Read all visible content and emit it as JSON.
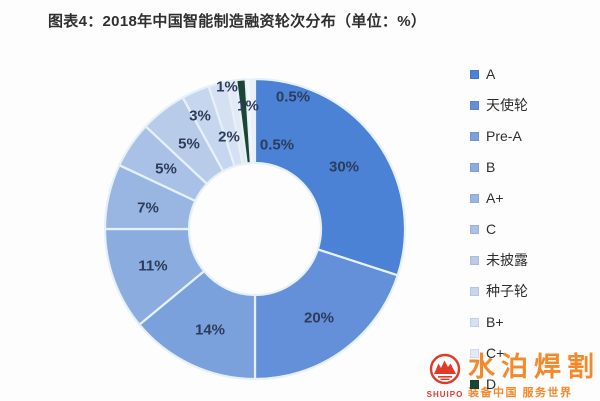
{
  "title": "图表4：2018年中国智能制造融资轮次分布（单位：%）",
  "chart_data": {
    "type": "pie",
    "subtype": "donut",
    "title": "图表4：2018年中国智能制造融资轮次分布（单位：%）",
    "unit": "%",
    "direction": "clockwise",
    "start_angle_deg": 0,
    "legend_position": "right",
    "slices": [
      {
        "label": "A",
        "value": 30,
        "display": "30%",
        "color": "#4b82d5",
        "in_legend": true
      },
      {
        "label": "天使轮",
        "value": 20,
        "display": "20%",
        "color": "#6390d8",
        "in_legend": true
      },
      {
        "label": "Pre-A",
        "value": 14,
        "display": "14%",
        "color": "#7ba1dd",
        "in_legend": true
      },
      {
        "label": "B",
        "value": 11,
        "display": "11%",
        "color": "#8aacdf",
        "in_legend": true
      },
      {
        "label": "A+",
        "value": 7,
        "display": "7%",
        "color": "#99b6e3",
        "in_legend": true
      },
      {
        "label": "C",
        "value": 5,
        "display": "5%",
        "color": "#a9c1e6",
        "in_legend": true
      },
      {
        "label": "未披露",
        "value": 5,
        "display": "5%",
        "color": "#b8cce9",
        "in_legend": true
      },
      {
        "label": "种子轮",
        "value": 3,
        "display": "3%",
        "color": "#c6d6ee",
        "in_legend": true
      },
      {
        "label": "B+",
        "value": 2,
        "display": "2%",
        "color": "#d5e0f2",
        "in_legend": true
      },
      {
        "label": "C+",
        "value": 1,
        "display": "1%",
        "color": "#e3e9f6",
        "in_legend": true
      },
      {
        "label": "D",
        "value": 1,
        "display": "1%",
        "color": "#1d4537",
        "in_legend": true
      },
      {
        "label": "",
        "value": 0.5,
        "display": "0.5%",
        "color": "#f4f6fb",
        "in_legend": false
      },
      {
        "label": "",
        "value": 0.5,
        "display": "0.5%",
        "color": "#ecf0f8",
        "in_legend": false
      }
    ]
  },
  "watermark": {
    "brand": "水泊焊割",
    "latin": "SHUIPO",
    "tagline": "装备中国 服务世界",
    "text_color": "#f5831f",
    "logo_color": "#e0301e"
  }
}
